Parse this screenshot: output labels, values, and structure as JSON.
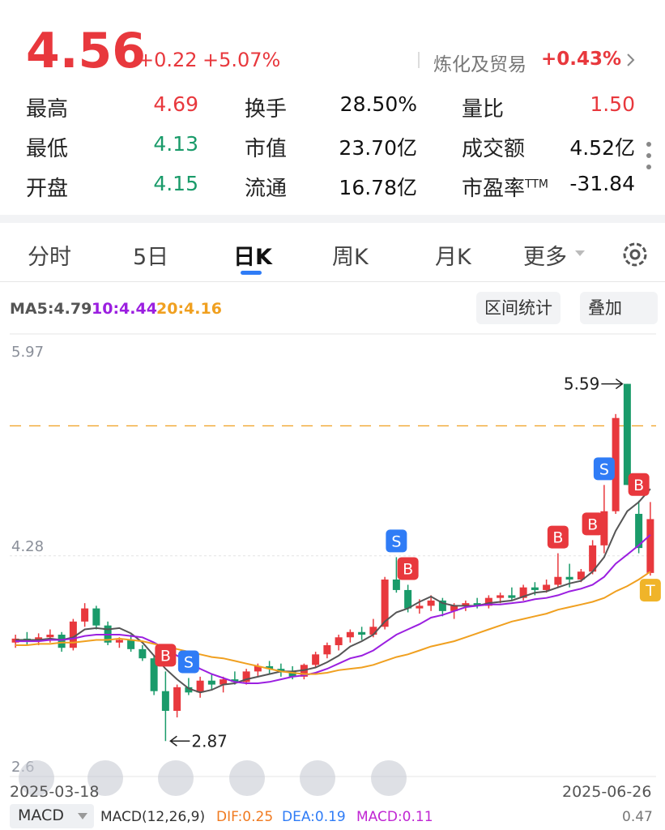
{
  "header": {
    "price": "4.56",
    "change": "+0.22",
    "change_pct": "+5.07%",
    "sector": "炼化及贸易",
    "sector_pct": "+0.43%"
  },
  "stats": [
    {
      "label": "最高",
      "value": "4.69",
      "color": "#e8383d"
    },
    {
      "label": "换手",
      "value": "28.50%",
      "color": "#111"
    },
    {
      "label": "量比",
      "value": "1.50",
      "color": "#e8383d"
    },
    {
      "label": "最低",
      "value": "4.13",
      "color": "#1a9b6a"
    },
    {
      "label": "市值",
      "value": "23.70亿",
      "color": "#111"
    },
    {
      "label": "成交额",
      "value": "4.52亿",
      "color": "#111"
    },
    {
      "label": "开盘",
      "value": "4.15",
      "color": "#1a9b6a"
    },
    {
      "label": "流通",
      "value": "16.78亿",
      "color": "#111"
    },
    {
      "label": "市盈率",
      "sup": "TTM",
      "value": "-31.84",
      "color": "#111"
    }
  ],
  "tabs": [
    "分时",
    "5日",
    "日K",
    "周K",
    "月K",
    "更多"
  ],
  "buttons": [
    "区间统计",
    "叠加"
  ],
  "chart_data": {
    "type": "candlestick",
    "ma_legend": [
      "MA5:4.79",
      "10:4.44",
      "20:4.16"
    ],
    "ylim": [
      2.6,
      5.97
    ],
    "yticks": [
      5.97,
      4.28,
      2.6
    ],
    "ref_line": 5.27,
    "max_price": 5.59,
    "min_price": 2.87,
    "x_start": "2025-03-18",
    "x_end": "2025-06-26",
    "open": [
      3.62,
      3.65,
      3.63,
      3.66,
      3.68,
      3.58,
      3.78,
      3.88,
      3.75,
      3.62,
      3.64,
      3.57,
      3.5,
      3.25,
      3.1,
      3.28,
      3.24,
      3.33,
      3.3,
      3.34,
      3.32,
      3.4,
      3.44,
      3.42,
      3.4,
      3.36,
      3.45,
      3.53,
      3.6,
      3.66,
      3.7,
      3.68,
      3.74,
      4.1,
      4.02,
      3.88,
      3.9,
      3.94,
      3.86,
      3.9,
      3.92,
      3.9,
      3.96,
      3.98,
      3.96,
      4.04,
      4.02,
      4.06,
      4.12,
      4.1,
      4.16,
      4.36,
      4.62,
      5.59,
      4.6,
      4.15
    ],
    "high": [
      3.68,
      3.7,
      3.69,
      3.72,
      3.7,
      3.8,
      3.92,
      3.9,
      3.78,
      3.66,
      3.68,
      3.6,
      3.52,
      3.4,
      3.3,
      3.35,
      3.36,
      3.38,
      3.36,
      3.4,
      3.42,
      3.46,
      3.48,
      3.46,
      3.44,
      3.46,
      3.55,
      3.62,
      3.68,
      3.72,
      3.74,
      3.8,
      4.12,
      4.27,
      4.06,
      3.95,
      3.98,
      3.96,
      3.92,
      3.94,
      3.96,
      3.98,
      4.0,
      4.04,
      4.06,
      4.08,
      4.1,
      4.3,
      4.22,
      4.18,
      4.4,
      4.82,
      5.36,
      5.59,
      4.7,
      4.69
    ],
    "low": [
      3.58,
      3.6,
      3.6,
      3.62,
      3.55,
      3.56,
      3.74,
      3.72,
      3.6,
      3.58,
      3.55,
      3.48,
      3.22,
      2.87,
      3.05,
      3.22,
      3.2,
      3.26,
      3.24,
      3.3,
      3.3,
      3.36,
      3.38,
      3.36,
      3.34,
      3.34,
      3.43,
      3.5,
      3.56,
      3.62,
      3.64,
      3.66,
      3.72,
      4.0,
      3.85,
      3.84,
      3.86,
      3.82,
      3.8,
      3.86,
      3.88,
      3.88,
      3.92,
      3.94,
      3.94,
      3.98,
      4.0,
      4.04,
      4.04,
      4.08,
      4.14,
      4.3,
      4.6,
      4.82,
      4.3,
      4.13
    ],
    "close": [
      3.65,
      3.63,
      3.66,
      3.68,
      3.58,
      3.78,
      3.88,
      3.75,
      3.62,
      3.64,
      3.57,
      3.5,
      3.25,
      3.1,
      3.28,
      3.24,
      3.33,
      3.3,
      3.34,
      3.32,
      3.4,
      3.44,
      3.42,
      3.4,
      3.36,
      3.45,
      3.53,
      3.6,
      3.66,
      3.7,
      3.68,
      3.74,
      4.1,
      4.02,
      3.88,
      3.9,
      3.94,
      3.86,
      3.9,
      3.92,
      3.9,
      3.96,
      3.98,
      3.96,
      4.04,
      4.02,
      4.06,
      4.12,
      4.1,
      4.16,
      4.36,
      4.62,
      5.33,
      4.82,
      4.34,
      4.56
    ],
    "signals": [
      null,
      null,
      null,
      null,
      null,
      null,
      null,
      null,
      null,
      null,
      null,
      null,
      null,
      "B",
      null,
      "S",
      null,
      null,
      null,
      null,
      null,
      null,
      null,
      null,
      null,
      null,
      null,
      null,
      null,
      null,
      null,
      null,
      null,
      "S",
      "B",
      null,
      null,
      null,
      null,
      null,
      null,
      null,
      null,
      null,
      null,
      null,
      null,
      "B",
      null,
      null,
      "B",
      "S",
      null,
      null,
      "B",
      "T"
    ],
    "signal_colors": {
      "B": "#e8383d",
      "S": "#2f7cf6",
      "T": "#f0b429"
    },
    "series": [
      {
        "name": "MA5",
        "color": "#555555",
        "values": [
          3.64,
          3.64,
          3.64,
          3.65,
          3.64,
          3.66,
          3.72,
          3.73,
          3.72,
          3.73,
          3.69,
          3.62,
          3.52,
          3.42,
          3.34,
          3.27,
          3.24,
          3.26,
          3.3,
          3.31,
          3.34,
          3.36,
          3.38,
          3.4,
          3.4,
          3.41,
          3.43,
          3.47,
          3.52,
          3.59,
          3.63,
          3.68,
          3.78,
          3.85,
          3.88,
          3.93,
          3.97,
          3.92,
          3.9,
          3.9,
          3.9,
          3.92,
          3.93,
          3.94,
          3.97,
          4.0,
          4.01,
          4.04,
          4.07,
          4.09,
          4.16,
          4.27,
          4.47,
          4.62,
          4.69,
          4.79
        ]
      },
      {
        "name": "MA10",
        "color": "#9b1fe0",
        "values": [
          3.63,
          3.63,
          3.63,
          3.64,
          3.64,
          3.65,
          3.67,
          3.68,
          3.68,
          3.68,
          3.67,
          3.66,
          3.62,
          3.57,
          3.52,
          3.47,
          3.42,
          3.38,
          3.35,
          3.32,
          3.31,
          3.31,
          3.32,
          3.34,
          3.36,
          3.37,
          3.39,
          3.42,
          3.46,
          3.5,
          3.52,
          3.56,
          3.62,
          3.68,
          3.72,
          3.76,
          3.81,
          3.83,
          3.86,
          3.89,
          3.9,
          3.91,
          3.91,
          3.92,
          3.93,
          3.95,
          3.96,
          3.98,
          4.01,
          4.03,
          4.06,
          4.12,
          4.22,
          4.29,
          4.36,
          4.44
        ]
      },
      {
        "name": "MA20",
        "color": "#f0a020",
        "values": [
          3.6,
          3.6,
          3.61,
          3.61,
          3.62,
          3.62,
          3.63,
          3.64,
          3.64,
          3.65,
          3.64,
          3.63,
          3.61,
          3.59,
          3.57,
          3.55,
          3.53,
          3.51,
          3.5,
          3.48,
          3.46,
          3.44,
          3.42,
          3.4,
          3.39,
          3.38,
          3.38,
          3.39,
          3.41,
          3.42,
          3.43,
          3.45,
          3.48,
          3.51,
          3.53,
          3.56,
          3.59,
          3.61,
          3.63,
          3.66,
          3.69,
          3.72,
          3.75,
          3.78,
          3.8,
          3.82,
          3.84,
          3.87,
          3.89,
          3.91,
          3.93,
          3.96,
          4.01,
          4.05,
          4.1,
          4.16
        ]
      }
    ]
  },
  "footer": {
    "indicator": "MACD",
    "params": "MACD(12,26,9)",
    "dif": "DIF:0.25",
    "dea": "DEA:0.19",
    "macd": "MACD:0.11",
    "right": "0.47"
  }
}
